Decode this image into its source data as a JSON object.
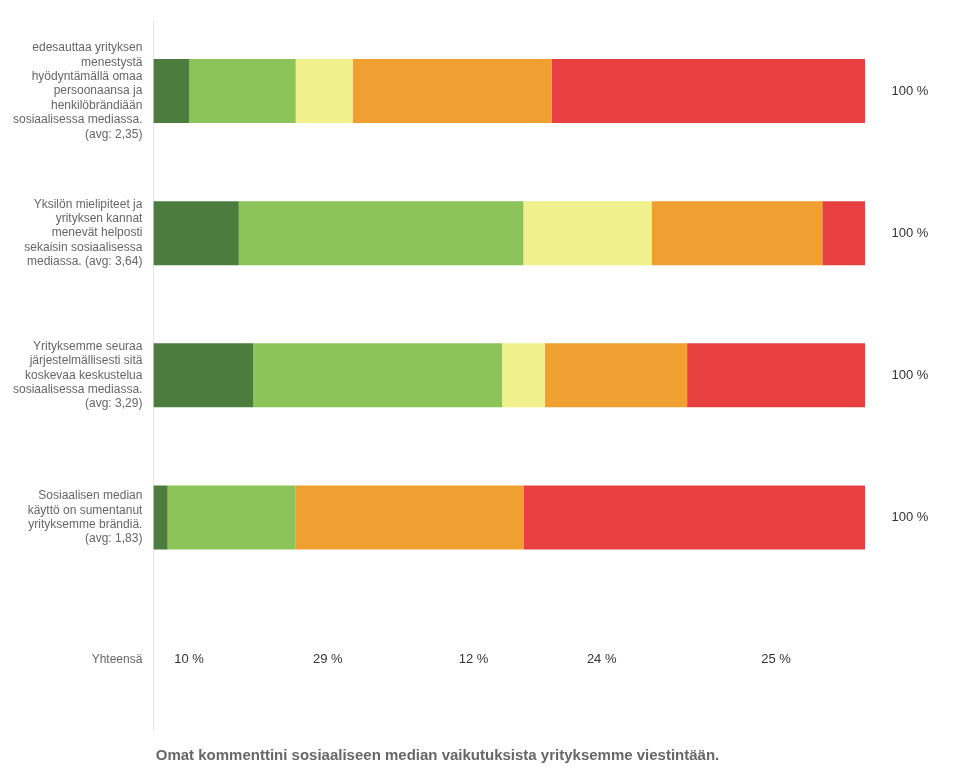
{
  "chart_data": {
    "type": "bar",
    "orientation": "horizontal",
    "stacked": true,
    "title": "Omat kommenttini sosiaaliseen median vaikutuksista yrityksemme viestintään.",
    "categories": [
      "edesauttaa yrityksen\nmenestystä\nhyödyntämällä omaa\npersoonaansa ja\nhenkilöbrändiään\nsosiaalisessa mediassa.\n(avg: 2,35)",
      "Yksilön mielipiteet ja\nyrityksen kannat\nmenevät helposti\nsekaisin sosiaalisessa\nmediassa. (avg: 3,64)",
      "Yrityksemme seuraa\njärjestelmällisesti sitä\nkoskevaa keskustelua\nsosiaalisessa mediassa.\n(avg: 3,29)",
      "Sosiaalisen median\nkäyttö on sumentanut\nyrityksemme brändiä.\n(avg: 1,83)"
    ],
    "series": [
      {
        "color": "#4d7c3f",
        "values": [
          5,
          12,
          14,
          2
        ]
      },
      {
        "color": "#8dc45a",
        "values": [
          15,
          40,
          35,
          18
        ]
      },
      {
        "color": "#f0f08c",
        "values": [
          8,
          18,
          6,
          0
        ]
      },
      {
        "color": "#f0a030",
        "values": [
          28,
          24,
          20,
          32
        ]
      },
      {
        "color": "#e84040",
        "values": [
          44,
          6,
          25,
          48
        ]
      }
    ],
    "row_totals": {
      "values": [
        100,
        100,
        100,
        100
      ],
      "value_labels": [
        "100 %",
        "100 %",
        "100 %",
        "100 %"
      ]
    },
    "totals": {
      "label": "Yhteensä",
      "values": [
        10,
        29,
        12,
        24,
        25
      ],
      "value_labels": [
        "10 %",
        "29 %",
        "12 %",
        "24 %",
        "25 %"
      ]
    },
    "xlim": [
      0,
      100
    ],
    "grid": false,
    "tick_labels": "y"
  }
}
